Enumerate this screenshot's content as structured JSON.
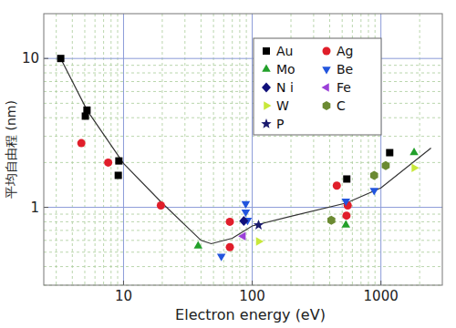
{
  "chart_data": {
    "type": "scatter",
    "x_label": "Electron energy (eV)",
    "y_label": "平均自由程 (nm)",
    "log": true,
    "grid": true,
    "legend": "top-right",
    "xlim": [
      2.4,
      3000
    ],
    "ylim": [
      0.3,
      20
    ],
    "xticks": [
      10,
      100,
      1000
    ],
    "yticks": [
      1,
      10
    ],
    "series": [
      {
        "name": "Au",
        "color": "#000000",
        "marker": "square",
        "x": [
          3.25,
          5.05,
          5.2,
          9.2,
          9.1,
          543,
          1170
        ],
        "values": [
          10.0,
          4.1,
          4.5,
          2.05,
          1.64,
          1.55,
          2.33
        ]
      },
      {
        "name": "Ag",
        "color": "#e01e2a",
        "marker": "circle",
        "x": [
          4.7,
          7.6,
          19.5,
          67,
          67,
          454,
          540,
          552
        ],
        "values": [
          2.7,
          2.0,
          1.03,
          0.8,
          0.54,
          1.4,
          0.88,
          1.03
        ]
      },
      {
        "name": "Mo",
        "color": "#22a02a",
        "marker": "triangle-up",
        "x": [
          38,
          534,
          1810
        ],
        "values": [
          0.55,
          0.76,
          2.33
        ]
      },
      {
        "name": "Be",
        "color": "#2255dd",
        "marker": "triangle-down",
        "x": [
          57.5,
          89,
          89,
          92,
          534,
          886
        ],
        "values": [
          0.47,
          1.06,
          0.93,
          0.82,
          1.1,
          1.3
        ]
      },
      {
        "name": "N i",
        "color": "#10107a",
        "marker": "diamond",
        "x": [
          86
        ],
        "values": [
          0.81
        ]
      },
      {
        "name": "Fe",
        "color": "#9b40d8",
        "marker": "triangle-left",
        "x": [
          85
        ],
        "values": [
          0.64
        ]
      },
      {
        "name": "W",
        "color": "#c8e83a",
        "marker": "triangle-right",
        "x": [
          112,
          1810
        ],
        "values": [
          0.59,
          1.84
        ]
      },
      {
        "name": "C",
        "color": "#6b8a32",
        "marker": "hexagon",
        "x": [
          412,
          886,
          1090
        ],
        "values": [
          0.82,
          1.64,
          1.91
        ]
      },
      {
        "name": "P",
        "color": "#1a1a6e",
        "marker": "star",
        "x": [
          112
        ],
        "values": [
          0.76
        ]
      },
      {
        "type": "line",
        "color": "#333333",
        "line_style": "solid",
        "x": [
          3.25,
          5.2,
          10,
          19.5,
          40,
          48,
          70,
          100,
          200,
          540,
          1000,
          2450
        ],
        "values": [
          10.0,
          4.5,
          1.97,
          1.09,
          0.6,
          0.57,
          0.62,
          0.75,
          0.87,
          1.07,
          1.35,
          2.5
        ]
      }
    ]
  }
}
